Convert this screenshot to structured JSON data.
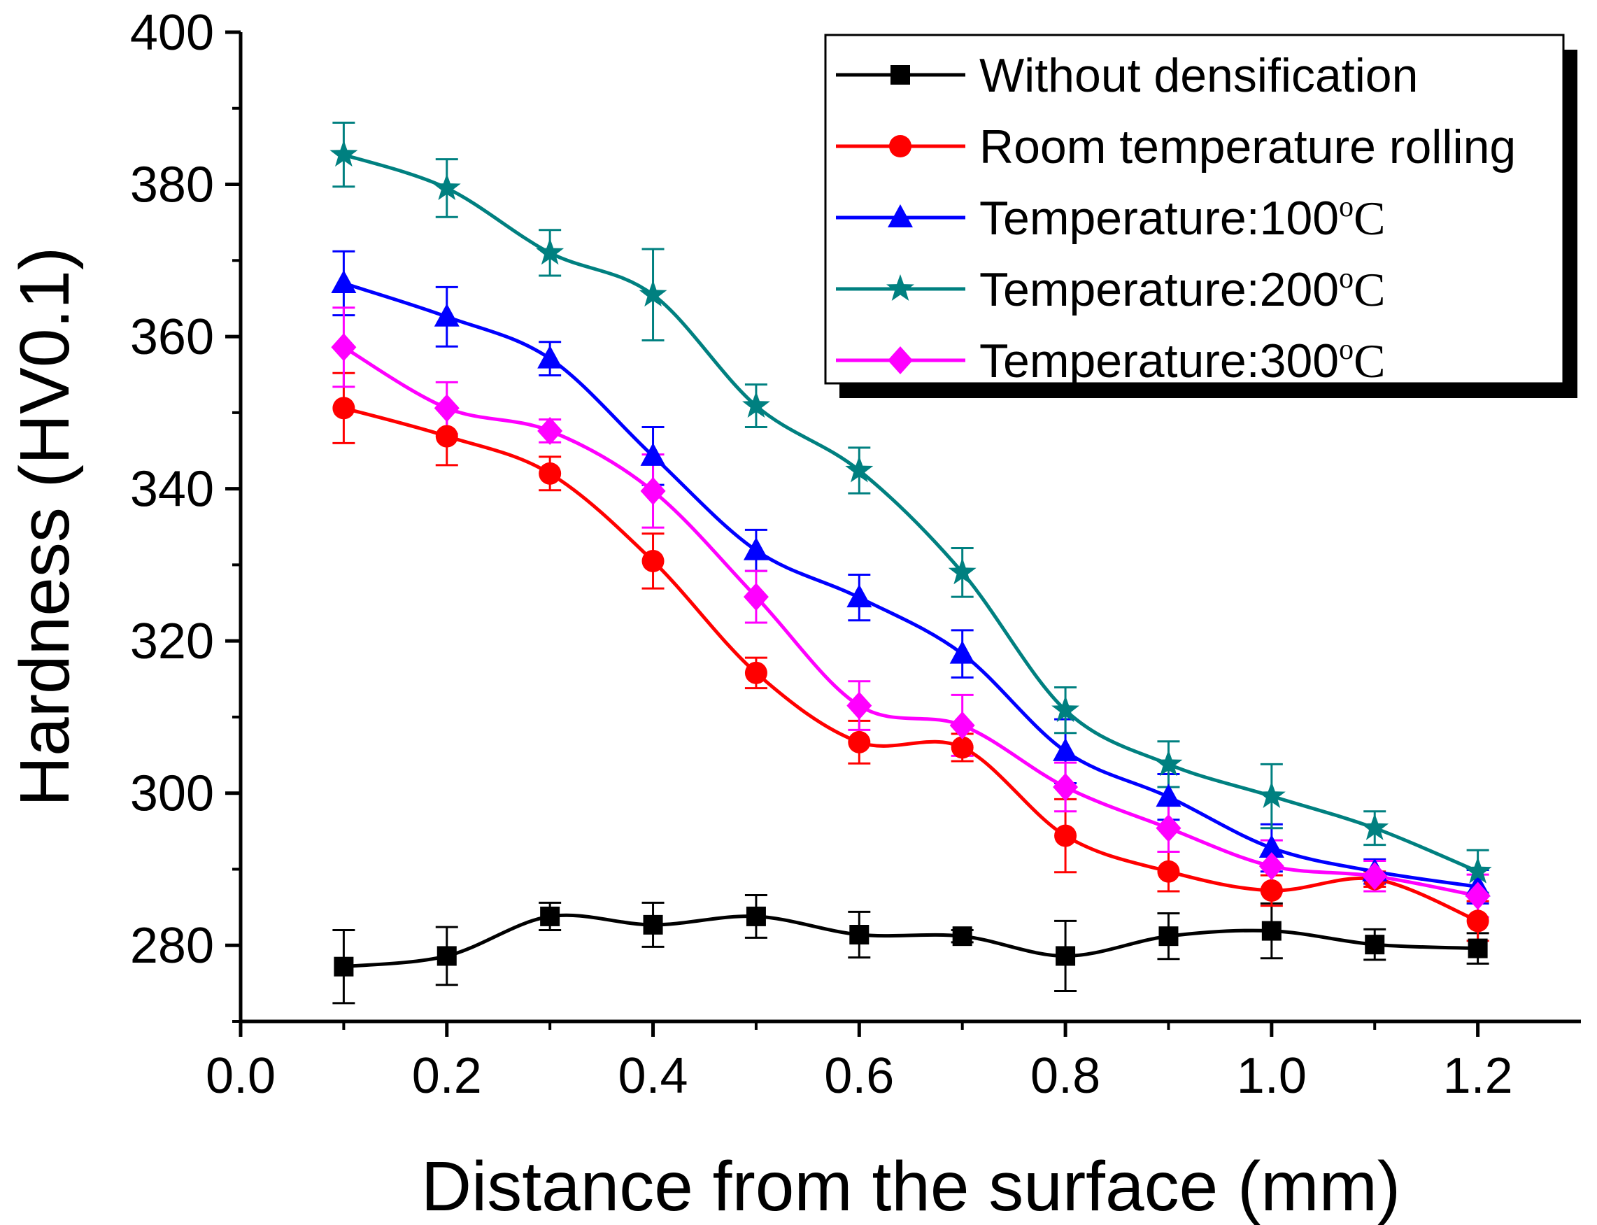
{
  "chart_data": {
    "type": "line",
    "title": "",
    "xlabel": "Distance from the surface (mm)",
    "ylabel": "Hardness (HV0.1)",
    "xlim": [
      0.0,
      1.3
    ],
    "ylim": [
      270,
      400
    ],
    "x_ticks": [
      0.0,
      0.2,
      0.4,
      0.6,
      0.8,
      1.0,
      1.2
    ],
    "x_tick_labels": [
      "0.0",
      "0.2",
      "0.4",
      "0.6",
      "0.8",
      "1.0",
      "1.2"
    ],
    "y_ticks": [
      280,
      300,
      320,
      340,
      360,
      380,
      400
    ],
    "y_tick_labels": [
      "280",
      "300",
      "320",
      "340",
      "360",
      "380",
      "400"
    ],
    "grid": false,
    "legend_position": "top-right",
    "x": [
      0.1,
      0.2,
      0.3,
      0.4,
      0.5,
      0.6,
      0.7,
      0.8,
      0.9,
      1.0,
      1.1,
      1.2
    ],
    "series": [
      {
        "name": "Without densification",
        "color": "#000000",
        "marker": "square",
        "values": [
          277.2,
          278.6,
          283.8,
          282.7,
          283.8,
          281.4,
          281.2,
          278.6,
          281.2,
          281.9,
          280.1,
          279.6
        ],
        "errors": [
          4.8,
          3.8,
          1.8,
          2.9,
          2.8,
          3.0,
          0.8,
          4.6,
          3.0,
          3.6,
          2.0,
          2.0
        ]
      },
      {
        "name": "Room temperature rolling",
        "legend_label": "Room temperature rolling",
        "color": "#ff0000",
        "marker": "circle",
        "values": [
          350.6,
          346.9,
          342.0,
          330.5,
          315.8,
          306.7,
          306.0,
          294.4,
          289.7,
          287.2,
          288.7,
          283.2
        ],
        "errors": [
          4.6,
          3.8,
          2.2,
          3.6,
          2.0,
          2.8,
          1.8,
          4.8,
          2.6,
          2.0,
          1.0,
          2.6
        ]
      },
      {
        "name": "Temperature:100°C",
        "legend_prefix": "Temperature:100",
        "color": "#0000ff",
        "marker": "triangle",
        "values": [
          367.0,
          362.6,
          357.1,
          344.3,
          331.9,
          325.7,
          318.3,
          305.5,
          299.5,
          292.8,
          289.7,
          287.7
        ],
        "errors": [
          4.2,
          3.9,
          2.2,
          3.8,
          2.7,
          3.0,
          3.1,
          4.2,
          3.0,
          3.1,
          1.6,
          2.2
        ]
      },
      {
        "name": "Temperature:200°C",
        "legend_prefix": "Temperature:200",
        "color": "#008080",
        "marker": "star",
        "values": [
          383.9,
          379.5,
          371.0,
          365.5,
          350.9,
          342.4,
          329.0,
          310.9,
          303.8,
          299.6,
          295.4,
          289.7
        ],
        "errors": [
          4.2,
          3.8,
          3.0,
          6.0,
          2.8,
          3.0,
          3.2,
          3.0,
          3.0,
          4.2,
          2.2,
          2.8
        ]
      },
      {
        "name": "Temperature:300°C",
        "legend_prefix": "Temperature:300",
        "color": "#ff00ff",
        "marker": "diamond",
        "values": [
          358.6,
          350.6,
          347.6,
          339.7,
          325.8,
          311.5,
          308.9,
          300.8,
          295.4,
          290.4,
          289.1,
          286.5
        ],
        "errors": [
          5.2,
          3.4,
          1.5,
          4.8,
          3.4,
          3.2,
          4.0,
          3.2,
          3.1,
          3.4,
          2.0,
          2.8
        ]
      }
    ]
  },
  "legend": {
    "items": [
      {
        "label": "Without densification",
        "suffix": false
      },
      {
        "label": "Room temperature rolling",
        "suffix": false
      },
      {
        "label": "Temperature:100",
        "suffix": true
      },
      {
        "label": "Temperature:200",
        "suffix": true
      },
      {
        "label": "Temperature:300",
        "suffix": true
      }
    ],
    "deg_o": "o",
    "deg_c": "C"
  }
}
